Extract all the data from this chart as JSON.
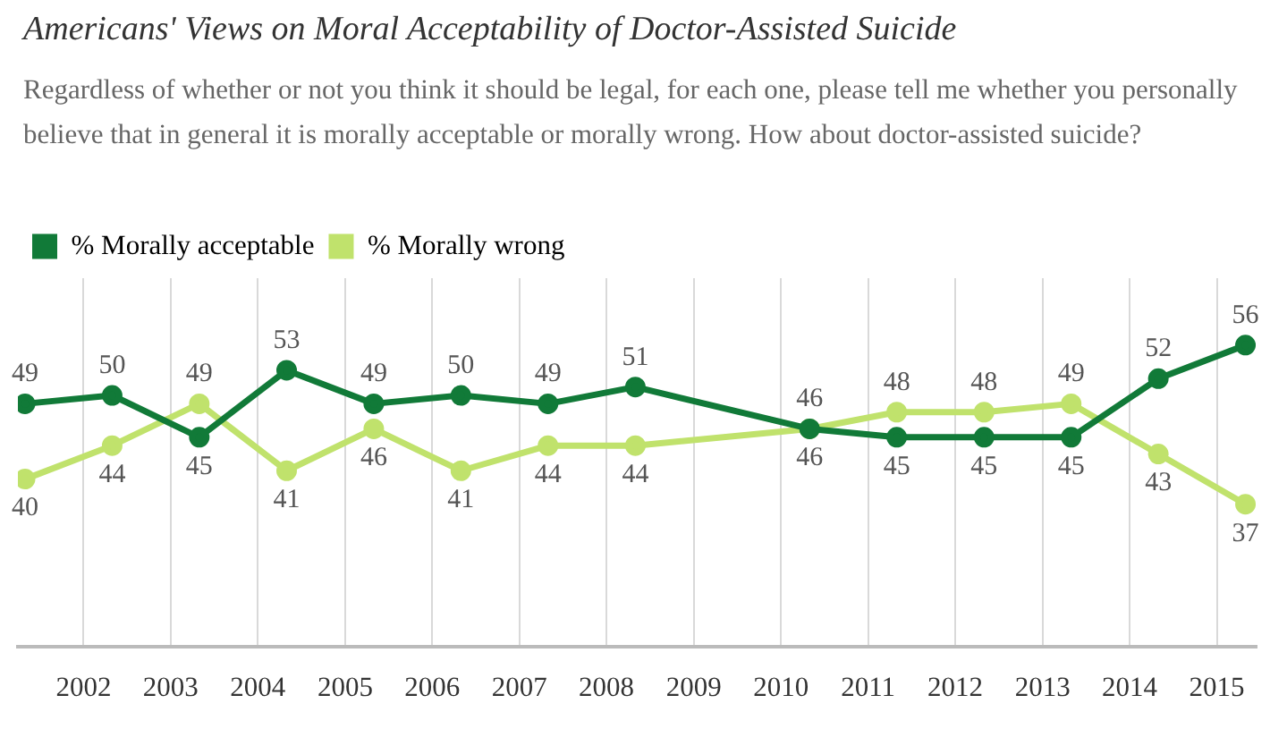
{
  "chart_data": {
    "type": "line",
    "title": "Americans' Views on Moral Acceptability of Doctor-Assisted Suicide",
    "subtitle": "Regardless of whether or not you think it should be legal, for each one, please tell me whether you personally believe that in general it is morally acceptable or morally wrong. How about doctor-assisted suicide?",
    "x": [
      "2001-05",
      "2002-05",
      "2003-05",
      "2004-05",
      "2005-05",
      "2006-05",
      "2007-05",
      "2008-05",
      "2010-05",
      "2011-05",
      "2012-05",
      "2013-05",
      "2014-05",
      "2015-05"
    ],
    "series": [
      {
        "name": "% Morally acceptable",
        "color": "#117a38",
        "values": [
          49,
          50,
          45,
          53,
          49,
          50,
          49,
          51,
          46,
          45,
          45,
          45,
          52,
          56
        ]
      },
      {
        "name": "% Morally wrong",
        "color": "#c0e26c",
        "values": [
          40,
          44,
          49,
          41,
          46,
          41,
          44,
          44,
          46,
          48,
          48,
          49,
          43,
          37
        ]
      }
    ],
    "xlim": [
      "2001-04",
      "2015-06-15"
    ],
    "xticks": [
      "2002",
      "2003",
      "2004",
      "2005",
      "2006",
      "2007",
      "2008",
      "2009",
      "2010",
      "2011",
      "2012",
      "2013",
      "2014",
      "2015"
    ],
    "ylim": [
      20,
      64
    ],
    "tick_labels": "x",
    "grid": "x",
    "legend": "top left",
    "marker": "circle",
    "line_style": "solid",
    "data_labels": true
  }
}
